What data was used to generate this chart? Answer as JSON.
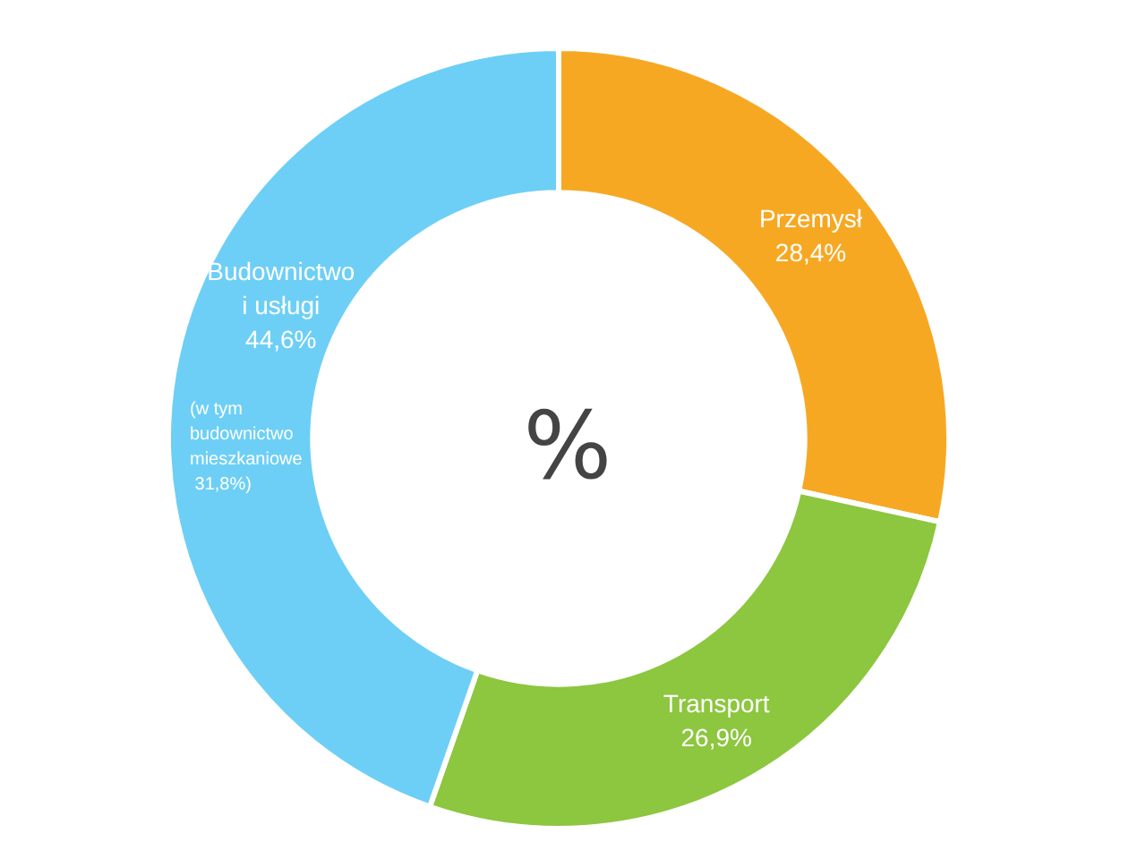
{
  "chart_data": {
    "type": "donut",
    "title": "%",
    "categories": [
      "Przemysł",
      "Transport",
      "Budownictwo i usługi"
    ],
    "values": [
      28.4,
      26.9,
      44.6
    ],
    "value_labels": [
      "28,4%",
      "26,9%",
      "44,6%"
    ],
    "colors": [
      "#f7a823",
      "#8dc63f",
      "#6dcff6"
    ],
    "annotations": [
      "(w tym budownictwo mieszkaniowe 31,8%)"
    ],
    "legend": false
  }
}
